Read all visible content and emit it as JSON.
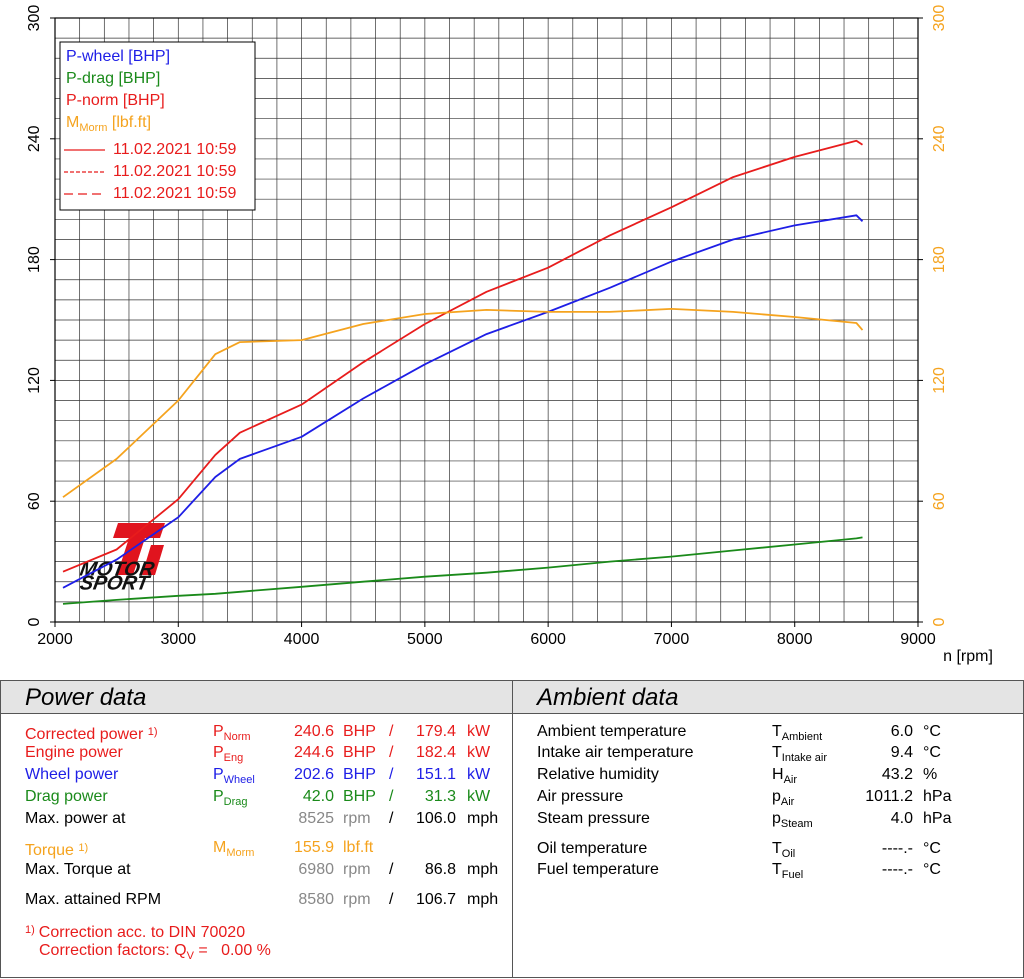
{
  "chart_data": {
    "type": "line",
    "x": [
      2065,
      2500,
      3000,
      3300,
      3500,
      4000,
      4500,
      5000,
      5500,
      6000,
      6500,
      7000,
      7500,
      8000,
      8500,
      8550
    ],
    "series": [
      {
        "name": "P-wheel [BHP]",
        "color": "#1e1ee6",
        "values": [
          17,
          31,
          52,
          72,
          81,
          92,
          111,
          128,
          143,
          154,
          166,
          179,
          190,
          197,
          202,
          199
        ]
      },
      {
        "name": "P-drag [BHP]",
        "color": "#1a8a1a",
        "values": [
          9,
          11,
          13,
          14,
          15,
          17.5,
          20,
          22.5,
          24.5,
          27,
          30,
          32.5,
          35.5,
          38.5,
          41.5,
          42
        ]
      },
      {
        "name": "P-norm [BHP]",
        "color": "#e81c1c",
        "values": [
          25,
          36,
          61,
          83,
          94,
          108,
          129,
          148,
          164,
          176,
          192,
          206,
          221,
          231,
          239,
          237
        ]
      },
      {
        "name": "M",
        "name_sub": "Morm",
        "name_suffix": " [lbf.ft]",
        "color": "#f5a31e",
        "axis": "y2",
        "values": [
          62,
          81,
          110,
          133,
          139,
          140,
          148,
          153,
          155,
          154,
          154,
          155.5,
          154,
          151.5,
          148.5,
          145
        ]
      }
    ],
    "runs": [
      {
        "label": "11.02.2021 10:59",
        "dash": "solid"
      },
      {
        "label": "11.02.2021 10:59",
        "dash": "dotted"
      },
      {
        "label": "11.02.2021 10:59",
        "dash": "dashed"
      }
    ],
    "xlabel": "n [rpm]",
    "xlim": [
      2000,
      9000
    ],
    "xticks": [
      2000,
      3000,
      4000,
      5000,
      6000,
      7000,
      8000,
      9000
    ],
    "ylim": [
      0,
      300
    ],
    "yticks": [
      0,
      60,
      120,
      180,
      240,
      300
    ],
    "y2lim": [
      0,
      300
    ],
    "y2ticks": [
      0,
      60,
      120,
      180,
      240,
      300
    ],
    "grid": {
      "x": 200,
      "y": 10
    },
    "legend": "upper left"
  },
  "logo": [
    "Ti",
    "MOTOR",
    "SPORT"
  ],
  "power_data": {
    "title": "Power data",
    "rows": [
      {
        "label": "Corrected power",
        "note": "1)",
        "sym": "P",
        "sub": "Norm",
        "v1": "240.6",
        "u1": "BHP",
        "sep": "/",
        "v2": "179.4",
        "u2": "kW",
        "color": "#e81c1c"
      },
      {
        "label": "Engine power",
        "sym": "P",
        "sub": "Eng",
        "v1": "244.6",
        "u1": "BHP",
        "sep": "/",
        "v2": "182.4",
        "u2": "kW",
        "color": "#e81c1c"
      },
      {
        "label": "Wheel power",
        "sym": "P",
        "sub": "Wheel",
        "v1": "202.6",
        "u1": "BHP",
        "sep": "/",
        "v2": "151.1",
        "u2": "kW",
        "color": "#1e1ee6"
      },
      {
        "label": "Drag power",
        "sym": "P",
        "sub": "Drag",
        "v1": "42.0",
        "u1": "BHP",
        "sep": "/",
        "v2": "31.3",
        "u2": "kW",
        "color": "#1a8a1a"
      },
      {
        "label": "Max. power at",
        "v1": "8525",
        "u1": "rpm",
        "sep": "/",
        "v2": "106.0",
        "u2": "mph",
        "color": "#000000",
        "value_color": "#888888"
      },
      {
        "label": "Torque",
        "note": "1)",
        "sym": "M",
        "sub": "Morm",
        "v1": "155.9",
        "u1": "lbf.ft",
        "color": "#f5a31e"
      },
      {
        "label": "Max. Torque at",
        "v1": "6980",
        "u1": "rpm",
        "sep": "/",
        "v2": "86.8",
        "u2": "mph",
        "color": "#000000",
        "value_color": "#888888"
      },
      {
        "label": "Max. attained RPM",
        "v1": "8580",
        "u1": "rpm",
        "sep": "/",
        "v2": "106.7",
        "u2": "mph",
        "color": "#000000",
        "value_color": "#888888"
      }
    ],
    "footnote": {
      "mark": "1)",
      "text": "Correction acc. to DIN 70020",
      "factors": "Correction factors: Q",
      "factors_sub": "V",
      "factors_value": " =   0.00 %"
    }
  },
  "ambient_data": {
    "title": "Ambient data",
    "rows": [
      {
        "label": "Ambient temperature",
        "sym": "T",
        "sub": "Ambient",
        "value": "6.0",
        "unit": "°C"
      },
      {
        "label": "Intake air temperature",
        "sym": "T",
        "sub": "Intake air",
        "value": "9.4",
        "unit": "°C"
      },
      {
        "label": "Relative humidity",
        "sym": "H",
        "sub": "Air",
        "value": "43.2",
        "unit": "%"
      },
      {
        "label": "Air pressure",
        "sym": "p",
        "sub": "Air",
        "value": "1011.2",
        "unit": "hPa"
      },
      {
        "label": "Steam pressure",
        "sym": "p",
        "sub": "Steam",
        "value": "4.0",
        "unit": "hPa"
      },
      {
        "label": "Oil temperature",
        "sym": "T",
        "sub": "Oil",
        "value": "----.-",
        "unit": "°C"
      },
      {
        "label": "Fuel temperature",
        "sym": "T",
        "sub": "Fuel",
        "value": "----.-",
        "unit": "°C"
      }
    ]
  }
}
